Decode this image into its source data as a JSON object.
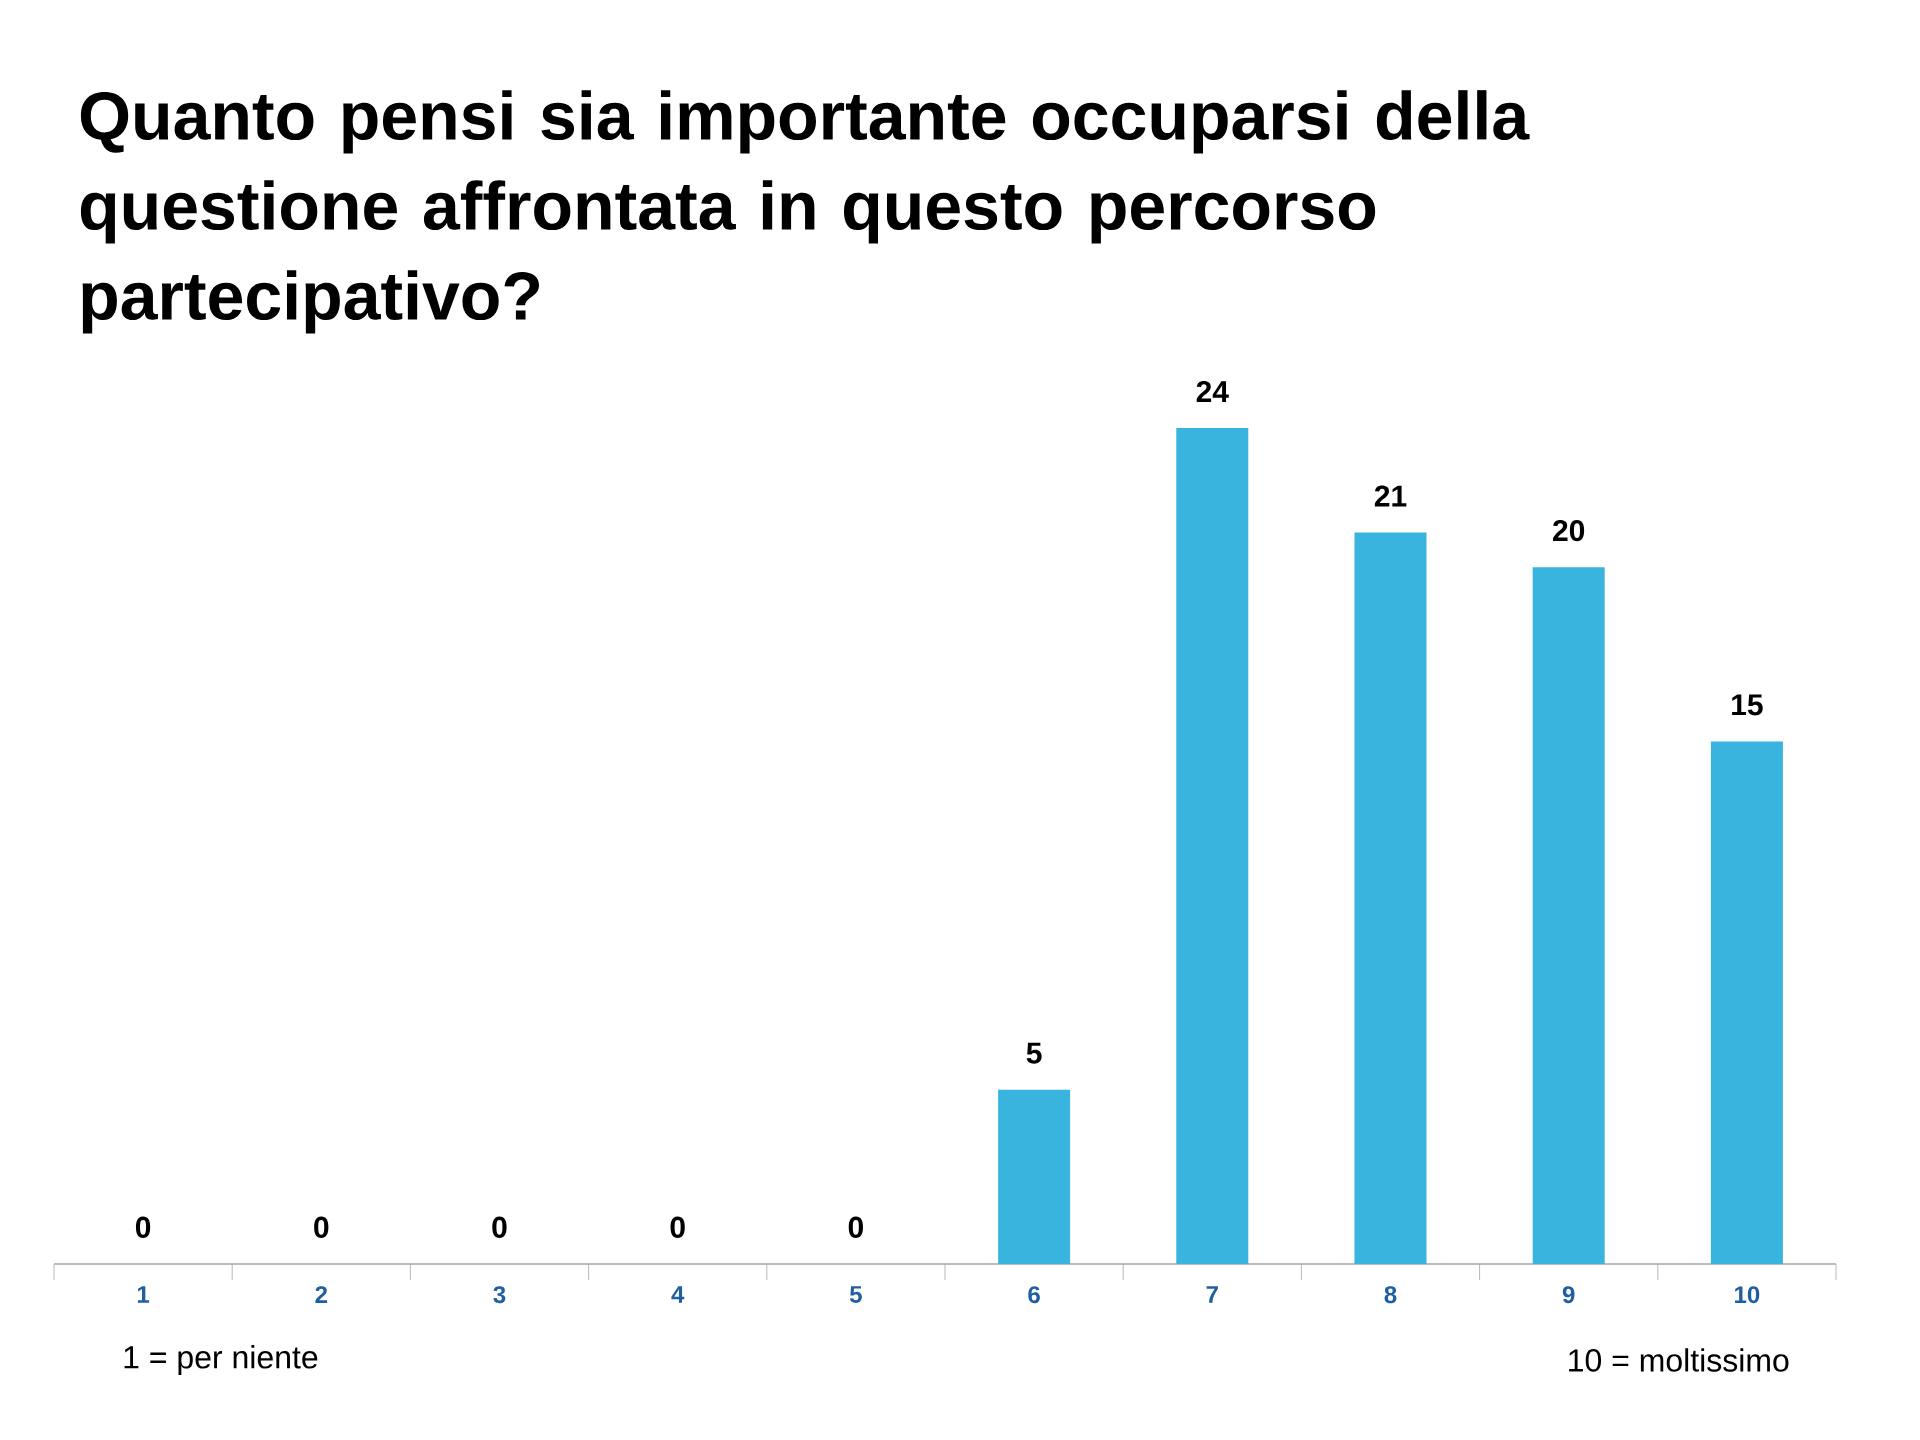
{
  "chart_data": {
    "type": "bar",
    "title": "Quanto pensi sia importante occuparsi della questione affrontata in questo percorso partecipativo?",
    "categories": [
      "1",
      "2",
      "3",
      "4",
      "5",
      "6",
      "7",
      "8",
      "9",
      "10"
    ],
    "values": [
      0,
      0,
      0,
      0,
      0,
      5,
      24,
      21,
      20,
      15
    ],
    "color": "#38b4de",
    "data_labels": true,
    "annotations": [
      "1 =  per niente",
      "10 = moltissimo"
    ]
  }
}
